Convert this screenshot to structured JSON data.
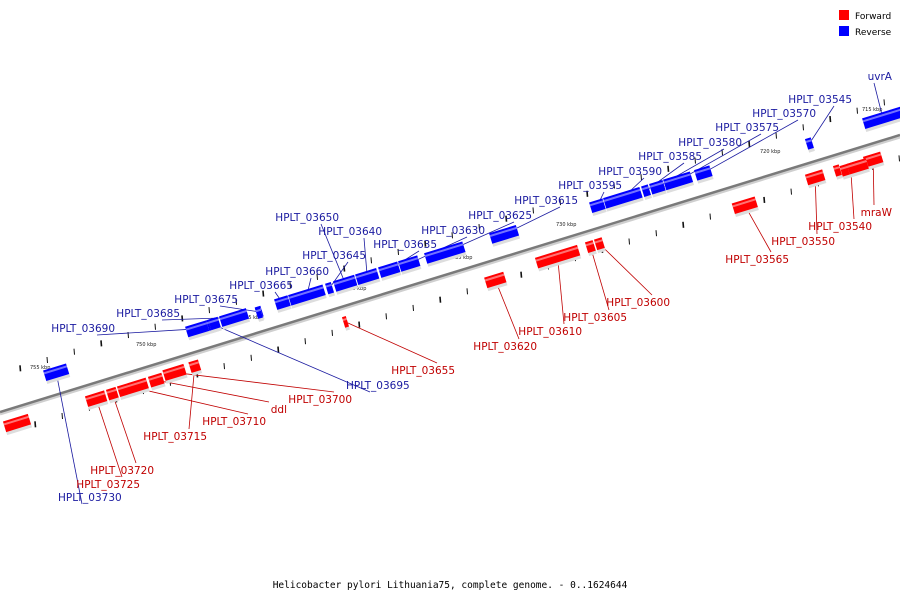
{
  "legend": {
    "items": [
      {
        "label": "Forward",
        "color": "#ff0000"
      },
      {
        "label": "Reverse",
        "color": "#0000ff"
      }
    ]
  },
  "caption": "Helicobacter pylori Lithuania75, complete genome. - 0..1624644",
  "colors": {
    "forward": "#ff0000",
    "reverse": "#0000ff",
    "label_forward": "#c00000",
    "label_reverse": "#1a1aa0",
    "axis": "#888888"
  },
  "ticks": [
    "715 kbp",
    "720 kbp",
    "725 kbp",
    "730 kbp",
    "735 kbp",
    "740 kbp",
    "745 kbp",
    "750 kbp",
    "755 kbp"
  ],
  "genes": [
    {
      "name": "uvrA",
      "strand": "reverse"
    },
    {
      "name": "HPLT_03545",
      "strand": "reverse"
    },
    {
      "name": "HPLT_03570",
      "strand": "reverse"
    },
    {
      "name": "HPLT_03575",
      "strand": "reverse"
    },
    {
      "name": "HPLT_03580",
      "strand": "reverse"
    },
    {
      "name": "HPLT_03585",
      "strand": "reverse"
    },
    {
      "name": "HPLT_03590",
      "strand": "reverse"
    },
    {
      "name": "HPLT_03595",
      "strand": "reverse"
    },
    {
      "name": "HPLT_03615",
      "strand": "reverse"
    },
    {
      "name": "HPLT_03625",
      "strand": "reverse"
    },
    {
      "name": "HPLT_03630",
      "strand": "reverse"
    },
    {
      "name": "HPLT_03635",
      "strand": "reverse"
    },
    {
      "name": "HPLT_03640",
      "strand": "reverse"
    },
    {
      "name": "HPLT_03650",
      "strand": "reverse"
    },
    {
      "name": "HPLT_03645",
      "strand": "reverse"
    },
    {
      "name": "HPLT_03660",
      "strand": "reverse"
    },
    {
      "name": "HPLT_03665",
      "strand": "reverse"
    },
    {
      "name": "HPLT_03675",
      "strand": "reverse"
    },
    {
      "name": "HPLT_03685",
      "strand": "reverse"
    },
    {
      "name": "HPLT_03690",
      "strand": "reverse"
    },
    {
      "name": "HPLT_03695",
      "strand": "reverse"
    },
    {
      "name": "HPLT_03730",
      "strand": "reverse"
    },
    {
      "name": "mraW",
      "strand": "forward"
    },
    {
      "name": "HPLT_03540",
      "strand": "forward"
    },
    {
      "name": "HPLT_03550",
      "strand": "forward"
    },
    {
      "name": "HPLT_03565",
      "strand": "forward"
    },
    {
      "name": "HPLT_03600",
      "strand": "forward"
    },
    {
      "name": "HPLT_03605",
      "strand": "forward"
    },
    {
      "name": "HPLT_03610",
      "strand": "forward"
    },
    {
      "name": "HPLT_03620",
      "strand": "forward"
    },
    {
      "name": "HPLT_03655",
      "strand": "forward"
    },
    {
      "name": "HPLT_03700",
      "strand": "forward"
    },
    {
      "name": "ddl",
      "strand": "forward"
    },
    {
      "name": "HPLT_03710",
      "strand": "forward"
    },
    {
      "name": "HPLT_03715",
      "strand": "forward"
    },
    {
      "name": "HPLT_03720",
      "strand": "forward"
    },
    {
      "name": "HPLT_03725",
      "strand": "forward"
    }
  ]
}
